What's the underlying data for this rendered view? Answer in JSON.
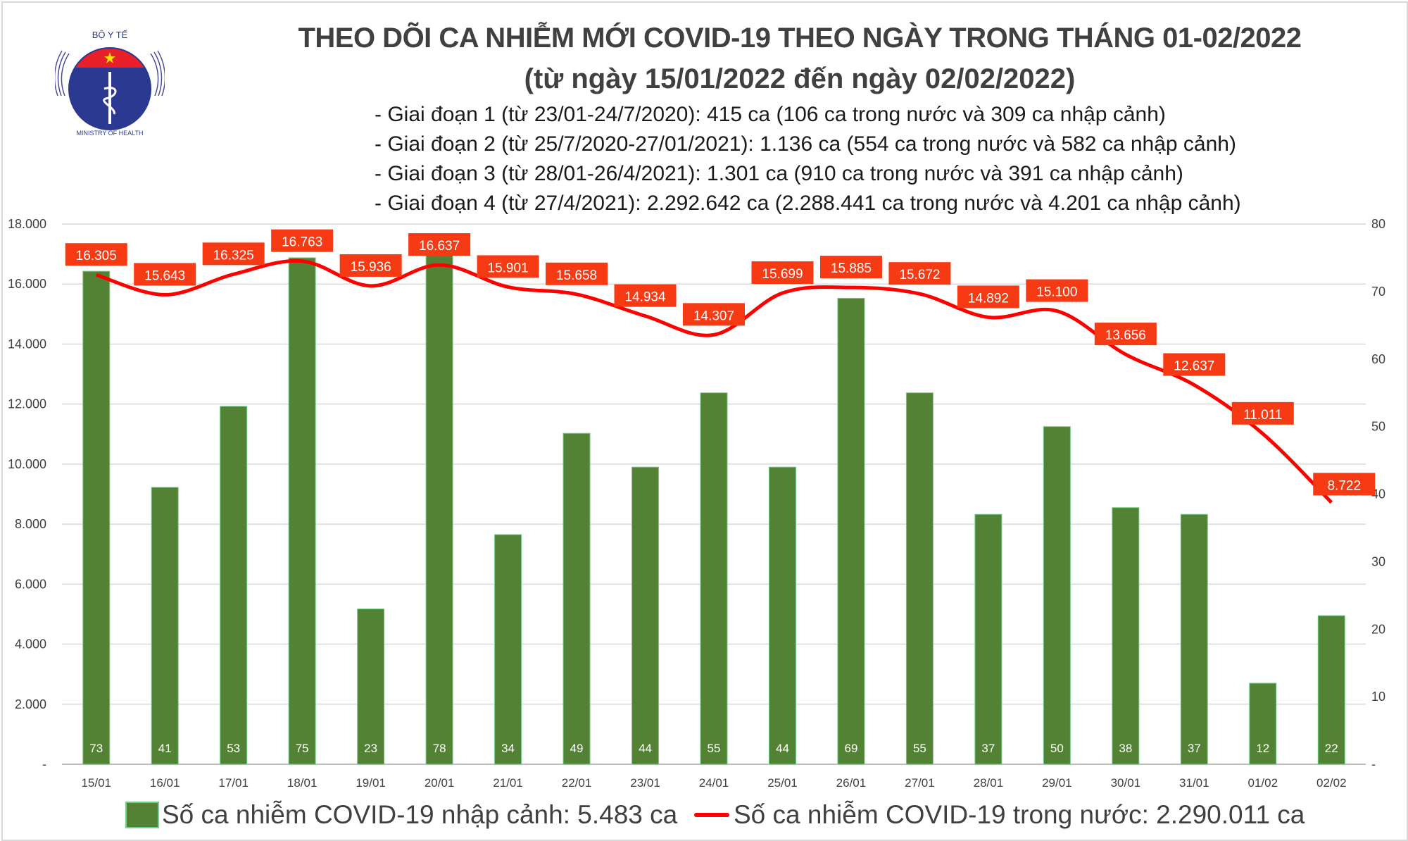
{
  "logo": {
    "top_text": "BỘ Y TẾ",
    "bottom_text": "MINISTRY OF HEALTH"
  },
  "header": {
    "title": "THEO DÕI CA NHIỄM MỚI COVID-19 THEO NGÀY TRONG THÁNG 01-02/2022",
    "subtitle": "(từ ngày 15/01/2022 đến ngày 02/02/2022)",
    "periods": [
      "- Giai đoạn 1 (từ 23/01-24/7/2020): 415 ca (106 ca trong nước và 309 ca nhập cảnh)",
      "- Giai đoạn 2 (từ 25/7/2020-27/01/2021): 1.136 ca (554 ca trong nước và 582 ca nhập cảnh)",
      "- Giai đoạn 3 (từ 28/01-26/4/2021): 1.301 ca (910 ca trong nước và 391 ca nhập cảnh)",
      "- Giai đoạn 4 (từ 27/4/2021): 2.292.642 ca (2.288.441 ca trong nước và 4.201 ca nhập cảnh)"
    ]
  },
  "chart_data": {
    "type": "bar+line",
    "categories": [
      "15/01",
      "16/01",
      "17/01",
      "18/01",
      "19/01",
      "20/01",
      "21/01",
      "22/01",
      "23/01",
      "24/01",
      "25/01",
      "26/01",
      "27/01",
      "28/01",
      "29/01",
      "30/01",
      "31/01",
      "01/02",
      "02/02"
    ],
    "series": [
      {
        "name": "Số ca nhiễm COVID-19 nhập cảnh: 5.483 ca",
        "type": "bar",
        "axis": "right",
        "color": "#548235",
        "values": [
          73,
          41,
          53,
          75,
          23,
          78,
          34,
          49,
          44,
          55,
          44,
          69,
          55,
          37,
          50,
          38,
          37,
          12,
          22
        ]
      },
      {
        "name": "Số ca nhiễm COVID-19 trong nước: 2.290.011 ca",
        "type": "line",
        "axis": "left",
        "color": "#ff0000",
        "values": [
          16305,
          15643,
          16325,
          16763,
          15936,
          16637,
          15901,
          15658,
          14934,
          14307,
          15699,
          15885,
          15672,
          14892,
          15100,
          13656,
          12637,
          11011,
          8722
        ]
      }
    ],
    "left_axis": {
      "range": [
        0,
        18000
      ],
      "ticks": [
        "-",
        "2.000",
        "4.000",
        "6.000",
        "8.000",
        "10.000",
        "12.000",
        "14.000",
        "16.000",
        "18.000"
      ]
    },
    "right_axis": {
      "range": [
        0,
        80
      ],
      "ticks": [
        "-",
        "10",
        "20",
        "30",
        "40",
        "50",
        "60",
        "70",
        "80"
      ]
    },
    "line_labels": [
      "16.305",
      "15.643",
      "16.325",
      "16.763",
      "15.936",
      "16.637",
      "15.901",
      "15.658",
      "14.934",
      "14.307",
      "15.699",
      "15.885",
      "15.672",
      "14.892",
      "15.100",
      "13.656",
      "12.637",
      "11.011",
      "8.722"
    ],
    "label_color": "#f53a14",
    "grid": true,
    "legend_position": "bottom"
  }
}
